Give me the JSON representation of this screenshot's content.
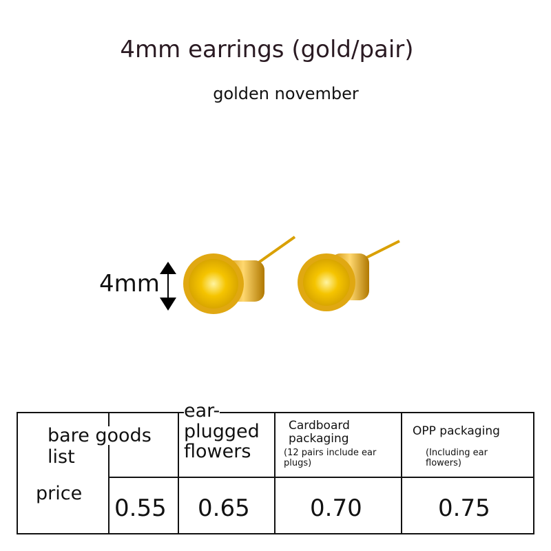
{
  "title": "4mm earrings (gold/pair)",
  "subtitle": "golden november",
  "size_label": "4mm",
  "colors": {
    "gold": "#e0a812",
    "stone": "#f5c400",
    "border": "#111111"
  },
  "table": {
    "row_header": {
      "list": "bare goods list",
      "list_line1": "bare goods",
      "list_line2": "list",
      "price": "price"
    },
    "columns": [
      {
        "name": "bare goods",
        "note": "",
        "price": "0.55"
      },
      {
        "name_lines": [
          "ear-",
          "plugged",
          "flowers"
        ],
        "note": "",
        "price": "0.65"
      },
      {
        "name_lines": [
          "Cardboard",
          "packaging"
        ],
        "note": "(12 pairs include ear plugs)",
        "price": "0.70"
      },
      {
        "name": "OPP packaging",
        "note": "(Including ear flowers)",
        "price": "0.75"
      }
    ]
  }
}
